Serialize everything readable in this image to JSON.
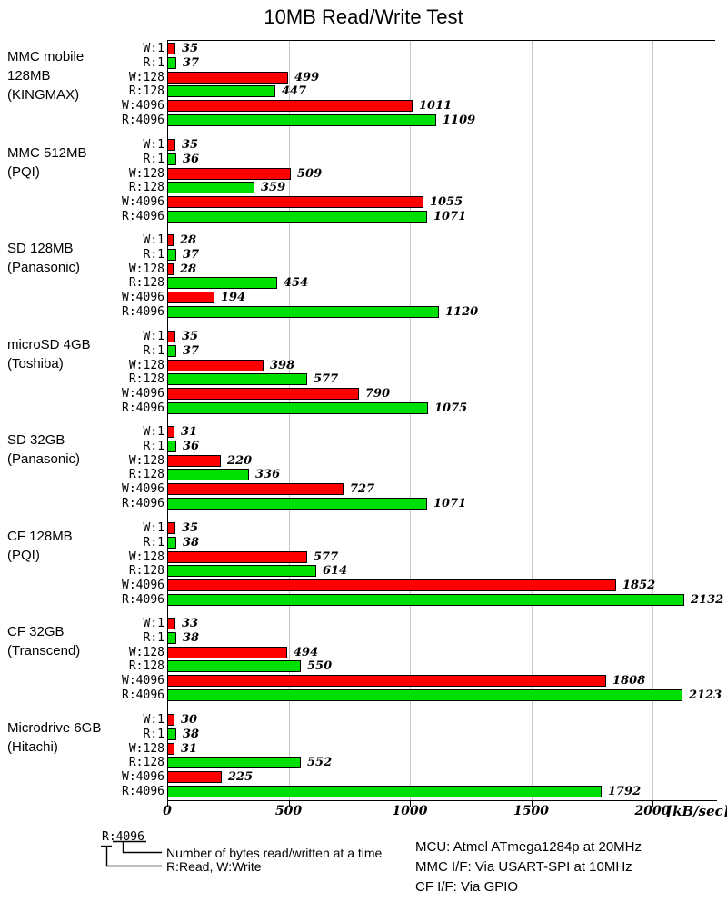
{
  "title": "10MB Read/Write Test",
  "chart_data": {
    "type": "bar",
    "orientation": "horizontal",
    "title": "10MB Read/Write Test",
    "xlabel": "[kB/sec]",
    "xlim": [
      0,
      2250
    ],
    "x_ticks": [
      0,
      500,
      1000,
      1500,
      2000
    ],
    "grid": "vertical-gray",
    "row_labels": [
      "W:1",
      "R:1",
      "W:128",
      "R:128",
      "W:4096",
      "R:4096"
    ],
    "colors": {
      "write": "#ff0000",
      "read": "#00e000",
      "bar_border": "#000000",
      "gridline": "#c6c6c6"
    },
    "groups": [
      {
        "device": [
          "MMC mobile",
          "128MB",
          "(KINGMAX)"
        ],
        "values": [
          35,
          37,
          499,
          447,
          1011,
          1109
        ]
      },
      {
        "device": [
          "MMC 512MB",
          "(PQI)"
        ],
        "values": [
          35,
          36,
          509,
          359,
          1055,
          1071
        ]
      },
      {
        "device": [
          "SD 128MB",
          "(Panasonic)"
        ],
        "values": [
          28,
          37,
          28,
          454,
          194,
          1120
        ]
      },
      {
        "device": [
          "microSD 4GB",
          "(Toshiba)"
        ],
        "values": [
          35,
          37,
          398,
          577,
          790,
          1075
        ]
      },
      {
        "device": [
          "SD 32GB",
          "(Panasonic)"
        ],
        "values": [
          31,
          36,
          220,
          336,
          727,
          1071
        ]
      },
      {
        "device": [
          "CF 128MB",
          "(PQI)"
        ],
        "values": [
          35,
          38,
          577,
          614,
          1852,
          2132
        ]
      },
      {
        "device": [
          "CF 32GB",
          "(Transcend)"
        ],
        "values": [
          33,
          38,
          494,
          550,
          1808,
          2123
        ]
      },
      {
        "device": [
          "Microdrive 6GB",
          "(Hitachi)"
        ],
        "values": [
          30,
          38,
          31,
          552,
          225,
          1792
        ]
      }
    ]
  },
  "legend": {
    "example": "R:4096",
    "bytes_note": "Number of bytes read/written at a time",
    "rw_note": "R:Read, W:Write"
  },
  "footer": {
    "line1": "MCU: Atmel ATmega1284p at 20MHz",
    "line2": "MMC I/F: Via USART-SPI at 10MHz",
    "line3": "CF I/F: Via GPIO"
  }
}
